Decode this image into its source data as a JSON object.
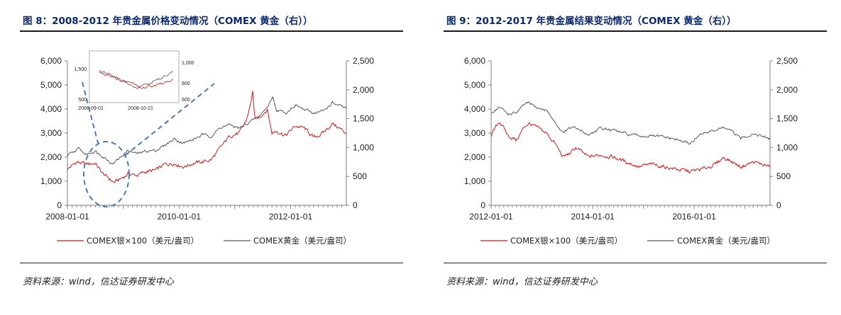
{
  "figures": [
    {
      "title": "图 8：2008-2012 年贵金属价格变动情况（COMEX 黄金（右））",
      "source": "资料来源：wind，信达证券研发中心",
      "legend": [
        "COMEX银×100（美元/盎司）",
        "COMEX黄金（美元/盎司）"
      ],
      "inset": {
        "x_ticks": [
          "2008-09-01",
          "2008-10-21"
        ],
        "left_ticks": [
          "1,500",
          "500"
        ],
        "right_ticks": [
          "1,000",
          "800",
          "600"
        ]
      }
    },
    {
      "title": "图 9：2012-2017 年贵金属结果变动情况（COMEX 黄金（右））",
      "source": "资料来源：wind，信达证券研发中心",
      "legend": [
        "COMEX银×100（美元/盎司）",
        "COMEX黄金（美元/盎司）"
      ]
    }
  ],
  "colors": {
    "silver_line": "#d01818",
    "gold_line": "#595959",
    "title": "#0b2a6e",
    "inset_dash": "#4a7ab8"
  },
  "chart_data": [
    {
      "type": "line",
      "title": "图 8：2008-2012 年贵金属价格变动情况（COMEX 黄金（右））",
      "x_ticks": [
        "2008-01-01",
        "2010-01-01",
        "2012-01-01"
      ],
      "x_range": [
        "2008-01-01",
        "2012-12-31"
      ],
      "y_left": {
        "range": [
          0,
          6000
        ],
        "ticks": [
          "0",
          "1,000",
          "2,000",
          "3,000",
          "4,000",
          "5,000",
          "6,000"
        ]
      },
      "y_right": {
        "range": [
          0,
          2500
        ],
        "ticks": [
          "0",
          "500",
          "1,000",
          "1,500",
          "2,000",
          "2,500"
        ]
      },
      "legend_position": "bottom",
      "grid": false,
      "series": [
        {
          "name": "COMEX银×100（美元/盎司）",
          "axis": "left",
          "x": [
            "2008-01-01",
            "2008-03-01",
            "2008-05-01",
            "2008-07-01",
            "2008-08-15",
            "2008-09-01",
            "2008-10-01",
            "2008-11-01",
            "2008-12-01",
            "2009-02-01",
            "2009-04-01",
            "2009-06-01",
            "2009-08-01",
            "2009-10-01",
            "2009-12-01",
            "2010-02-01",
            "2010-04-01",
            "2010-06-01",
            "2010-08-01",
            "2010-10-01",
            "2010-12-01",
            "2011-02-01",
            "2011-03-15",
            "2011-04-15",
            "2011-04-28",
            "2011-05-10",
            "2011-06-01",
            "2011-08-01",
            "2011-09-01",
            "2011-10-01",
            "2011-12-01",
            "2012-02-01",
            "2012-04-01",
            "2012-06-01",
            "2012-08-01",
            "2012-10-01",
            "2012-12-31"
          ],
          "values": [
            1500,
            1800,
            1700,
            1750,
            1350,
            1250,
            1100,
            950,
            1050,
            1300,
            1250,
            1400,
            1450,
            1700,
            1750,
            1600,
            1750,
            1800,
            1900,
            2400,
            2900,
            3000,
            3500,
            4200,
            4800,
            3600,
            3600,
            4000,
            3000,
            3100,
            2900,
            3300,
            3200,
            2800,
            3000,
            3400,
            3000
          ]
        },
        {
          "name": "COMEX黄金（美元/盎司）",
          "axis": "right",
          "x": [
            "2008-01-01",
            "2008-03-15",
            "2008-05-01",
            "2008-07-01",
            "2008-09-01",
            "2008-10-20",
            "2008-12-01",
            "2009-02-01",
            "2009-04-01",
            "2009-06-01",
            "2009-08-01",
            "2009-10-01",
            "2009-12-01",
            "2010-02-01",
            "2010-04-01",
            "2010-06-01",
            "2010-08-01",
            "2010-10-01",
            "2010-12-01",
            "2011-02-01",
            "2011-04-01",
            "2011-06-01",
            "2011-08-01",
            "2011-09-05",
            "2011-10-01",
            "2011-12-01",
            "2012-02-01",
            "2012-04-01",
            "2012-06-01",
            "2012-08-01",
            "2012-10-01",
            "2012-12-31"
          ],
          "values": [
            850,
            980,
            880,
            940,
            830,
            720,
            800,
            950,
            890,
            940,
            950,
            1040,
            1150,
            1080,
            1130,
            1220,
            1200,
            1350,
            1390,
            1330,
            1430,
            1520,
            1700,
            1880,
            1650,
            1600,
            1740,
            1650,
            1600,
            1630,
            1770,
            1670
          ]
        }
      ]
    },
    {
      "type": "line",
      "title": "图 9：2012-2017 年贵金属结果变动情况（COMEX 黄金（右））",
      "x_ticks": [
        "2012-01-01",
        "2014-01-01",
        "2016-01-01"
      ],
      "x_range": [
        "2012-01-01",
        "2017-06-30"
      ],
      "y_left": {
        "range": [
          0,
          6000
        ],
        "ticks": [
          "0",
          "1,000",
          "2,000",
          "3,000",
          "4,000",
          "5,000",
          "6,000"
        ]
      },
      "y_right": {
        "range": [
          0,
          2500
        ],
        "ticks": [
          "0",
          "500",
          "1,000",
          "1,500",
          "2,000",
          "2,500"
        ]
      },
      "legend_position": "bottom",
      "grid": false,
      "series": [
        {
          "name": "COMEX银×100（美元/盎司）",
          "axis": "left",
          "x": [
            "2012-01-01",
            "2012-03-01",
            "2012-05-01",
            "2012-07-01",
            "2012-09-01",
            "2012-10-01",
            "2012-12-01",
            "2013-02-01",
            "2013-04-01",
            "2013-06-01",
            "2013-08-01",
            "2013-09-01",
            "2013-12-01",
            "2014-03-01",
            "2014-06-01",
            "2014-09-01",
            "2014-12-01",
            "2015-03-01",
            "2015-06-01",
            "2015-09-01",
            "2015-12-01",
            "2016-03-01",
            "2016-06-01",
            "2016-08-01",
            "2016-10-01",
            "2016-12-01",
            "2017-03-01",
            "2017-06-30"
          ],
          "values": [
            2900,
            3500,
            2900,
            2700,
            3300,
            3400,
            3200,
            3000,
            2600,
            2000,
            2200,
            2400,
            2000,
            2100,
            2000,
            1800,
            1600,
            1700,
            1600,
            1500,
            1400,
            1500,
            1700,
            2000,
            1800,
            1600,
            1800,
            1600
          ]
        },
        {
          "name": "COMEX黄金（美元/盎司）",
          "axis": "right",
          "x": [
            "2012-01-01",
            "2012-03-01",
            "2012-05-01",
            "2012-07-01",
            "2012-09-01",
            "2012-10-01",
            "2012-12-01",
            "2013-02-01",
            "2013-04-01",
            "2013-06-01",
            "2013-08-01",
            "2013-10-01",
            "2013-12-01",
            "2014-03-01",
            "2014-06-01",
            "2014-09-01",
            "2014-12-01",
            "2015-03-01",
            "2015-06-01",
            "2015-09-01",
            "2015-12-01",
            "2016-03-01",
            "2016-06-01",
            "2016-08-01",
            "2016-10-01",
            "2016-12-01",
            "2017-03-01",
            "2017-06-30"
          ],
          "values": [
            1600,
            1700,
            1580,
            1600,
            1750,
            1770,
            1680,
            1650,
            1450,
            1250,
            1350,
            1300,
            1220,
            1330,
            1300,
            1230,
            1200,
            1200,
            1180,
            1130,
            1070,
            1250,
            1300,
            1350,
            1270,
            1150,
            1250,
            1140
          ]
        }
      ]
    }
  ]
}
